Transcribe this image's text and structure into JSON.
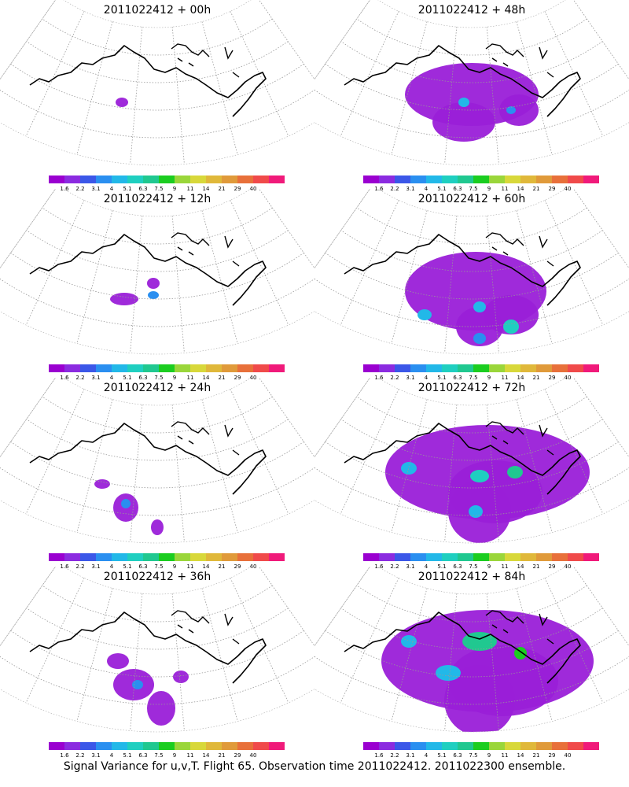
{
  "footer": "Signal Variance for u,v,T. Flight 65. Observation time 2011022412. 2011022300 ensemble.",
  "colorbar": {
    "colors": [
      "#9a00d0",
      "#8b2be0",
      "#3b57e8",
      "#2a8ff0",
      "#22b8e8",
      "#1fcfc0",
      "#20c890",
      "#1bcd20",
      "#9ad63a",
      "#d8d83a",
      "#e0b83a",
      "#e09a3a",
      "#e8703a",
      "#f04a4a",
      "#f01a7a"
    ],
    "labels": [
      "1.6",
      "2.2",
      "3.1",
      "4",
      "5.1",
      "6.3",
      "7.5",
      "9",
      "11",
      "14",
      "21",
      "29",
      "40"
    ]
  },
  "panels": [
    {
      "title": "2011022412 + 00h",
      "intensity": 0
    },
    {
      "title": "2011022412 + 48h",
      "intensity": 4
    },
    {
      "title": "2011022412 + 12h",
      "intensity": 1
    },
    {
      "title": "2011022412 + 60h",
      "intensity": 5
    },
    {
      "title": "2011022412 + 24h",
      "intensity": 2
    },
    {
      "title": "2011022412 + 72h",
      "intensity": 6
    },
    {
      "title": "2011022412 + 36h",
      "intensity": 3
    },
    {
      "title": "2011022412 + 84h",
      "intensity": 7
    }
  ]
}
